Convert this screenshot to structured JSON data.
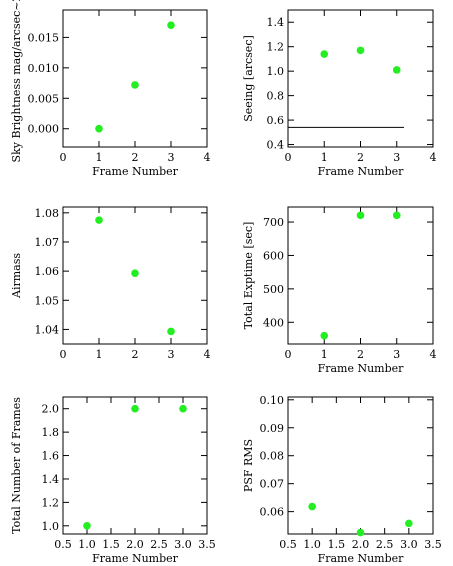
{
  "chart_data": [
    {
      "type": "scatter",
      "xlabel": "Frame Number",
      "ylabel": "Sky Brightness mag/arcsec~2",
      "xlim": [
        0,
        4
      ],
      "ylim": [
        -0.003,
        0.0195
      ],
      "xticks": [
        0,
        1,
        2,
        3,
        4
      ],
      "xtick_labels": [
        "0",
        "1",
        "2",
        "3",
        "4"
      ],
      "yticks": [
        0.0,
        0.005,
        0.01,
        0.015
      ],
      "ytick_labels": [
        "0.000",
        "0.005",
        "0.010",
        "0.015"
      ],
      "marker_color": "#22ee22",
      "points": [
        {
          "x": 1,
          "y": 0.0
        },
        {
          "x": 2,
          "y": 0.0072
        },
        {
          "x": 3,
          "y": 0.017
        }
      ]
    },
    {
      "type": "scatter",
      "xlabel": "Frame Number",
      "ylabel": "Seeing [arcsec]",
      "xlim": [
        0,
        4
      ],
      "ylim": [
        0.38,
        1.5
      ],
      "xticks": [
        0,
        1,
        2,
        3,
        4
      ],
      "xtick_labels": [
        "0",
        "1",
        "2",
        "3",
        "4"
      ],
      "yticks": [
        0.4,
        0.6,
        0.8,
        1.0,
        1.2,
        1.4
      ],
      "ytick_labels": [
        "0.4",
        "0.6",
        "0.8",
        "1.0",
        "1.2",
        "1.4"
      ],
      "marker_color": "#22ee22",
      "reference_line": {
        "y": 0.54,
        "x_from": 0,
        "x_to": 3.2
      },
      "points": [
        {
          "x": 1,
          "y": 1.14
        },
        {
          "x": 2,
          "y": 1.17
        },
        {
          "x": 3,
          "y": 1.01
        }
      ]
    },
    {
      "type": "scatter",
      "xlabel": "",
      "ylabel": "Airmass",
      "xlim": [
        0,
        4
      ],
      "ylim": [
        1.035,
        1.082
      ],
      "xticks": [
        0,
        1,
        2,
        3,
        4
      ],
      "xtick_labels": [
        "0",
        "1",
        "2",
        "3",
        "4"
      ],
      "yticks": [
        1.04,
        1.05,
        1.06,
        1.07,
        1.08
      ],
      "ytick_labels": [
        "1.04",
        "1.05",
        "1.06",
        "1.07",
        "1.08"
      ],
      "marker_color": "#22ee22",
      "points": [
        {
          "x": 1,
          "y": 1.0775
        },
        {
          "x": 2,
          "y": 1.0593
        },
        {
          "x": 3,
          "y": 1.0393
        }
      ]
    },
    {
      "type": "scatter",
      "xlabel": "Frame Number",
      "ylabel": "Total Exptime [sec]",
      "xlim": [
        0,
        4
      ],
      "ylim": [
        335,
        745
      ],
      "xticks": [
        0,
        1,
        2,
        3,
        4
      ],
      "xtick_labels": [
        "0",
        "1",
        "2",
        "3",
        "4"
      ],
      "yticks": [
        400,
        500,
        600,
        700
      ],
      "ytick_labels": [
        "400",
        "500",
        "600",
        "700"
      ],
      "marker_color": "#22ee22",
      "points": [
        {
          "x": 1,
          "y": 360
        },
        {
          "x": 2,
          "y": 720
        },
        {
          "x": 3,
          "y": 720
        }
      ]
    },
    {
      "type": "scatter",
      "xlabel": "Frame Number",
      "ylabel": "Total Number of Frames",
      "xlim": [
        0.5,
        3.5
      ],
      "ylim": [
        0.93,
        2.1
      ],
      "xticks": [
        0.5,
        1.0,
        1.5,
        2.0,
        2.5,
        3.0,
        3.5
      ],
      "xtick_labels": [
        "0.5",
        "1.0",
        "1.5",
        "2.0",
        "2.5",
        "3.0",
        "3.5"
      ],
      "yticks": [
        1.0,
        1.2,
        1.4,
        1.6,
        1.8,
        2.0
      ],
      "ytick_labels": [
        "1.0",
        "1.2",
        "1.4",
        "1.6",
        "1.8",
        "2.0"
      ],
      "marker_color": "#22ee22",
      "points": [
        {
          "x": 1,
          "y": 1.0
        },
        {
          "x": 2,
          "y": 2.0
        },
        {
          "x": 3,
          "y": 2.0
        }
      ]
    },
    {
      "type": "scatter",
      "xlabel": "Frame Number",
      "ylabel": "PSF RMS",
      "xlim": [
        0.5,
        3.5
      ],
      "ylim": [
        0.052,
        0.101
      ],
      "xticks": [
        0.5,
        1.0,
        1.5,
        2.0,
        2.5,
        3.0,
        3.5
      ],
      "xtick_labels": [
        "0.5",
        "1.0",
        "1.5",
        "2.0",
        "2.5",
        "3.0",
        "3.5"
      ],
      "yticks": [
        0.06,
        0.07,
        0.08,
        0.09,
        0.1
      ],
      "ytick_labels": [
        "0.06",
        "0.07",
        "0.08",
        "0.09",
        "0.10"
      ],
      "marker_color": "#22ee22",
      "points": [
        {
          "x": 1,
          "y": 0.0618
        },
        {
          "x": 2,
          "y": 0.0525
        },
        {
          "x": 3,
          "y": 0.0558
        }
      ]
    }
  ]
}
